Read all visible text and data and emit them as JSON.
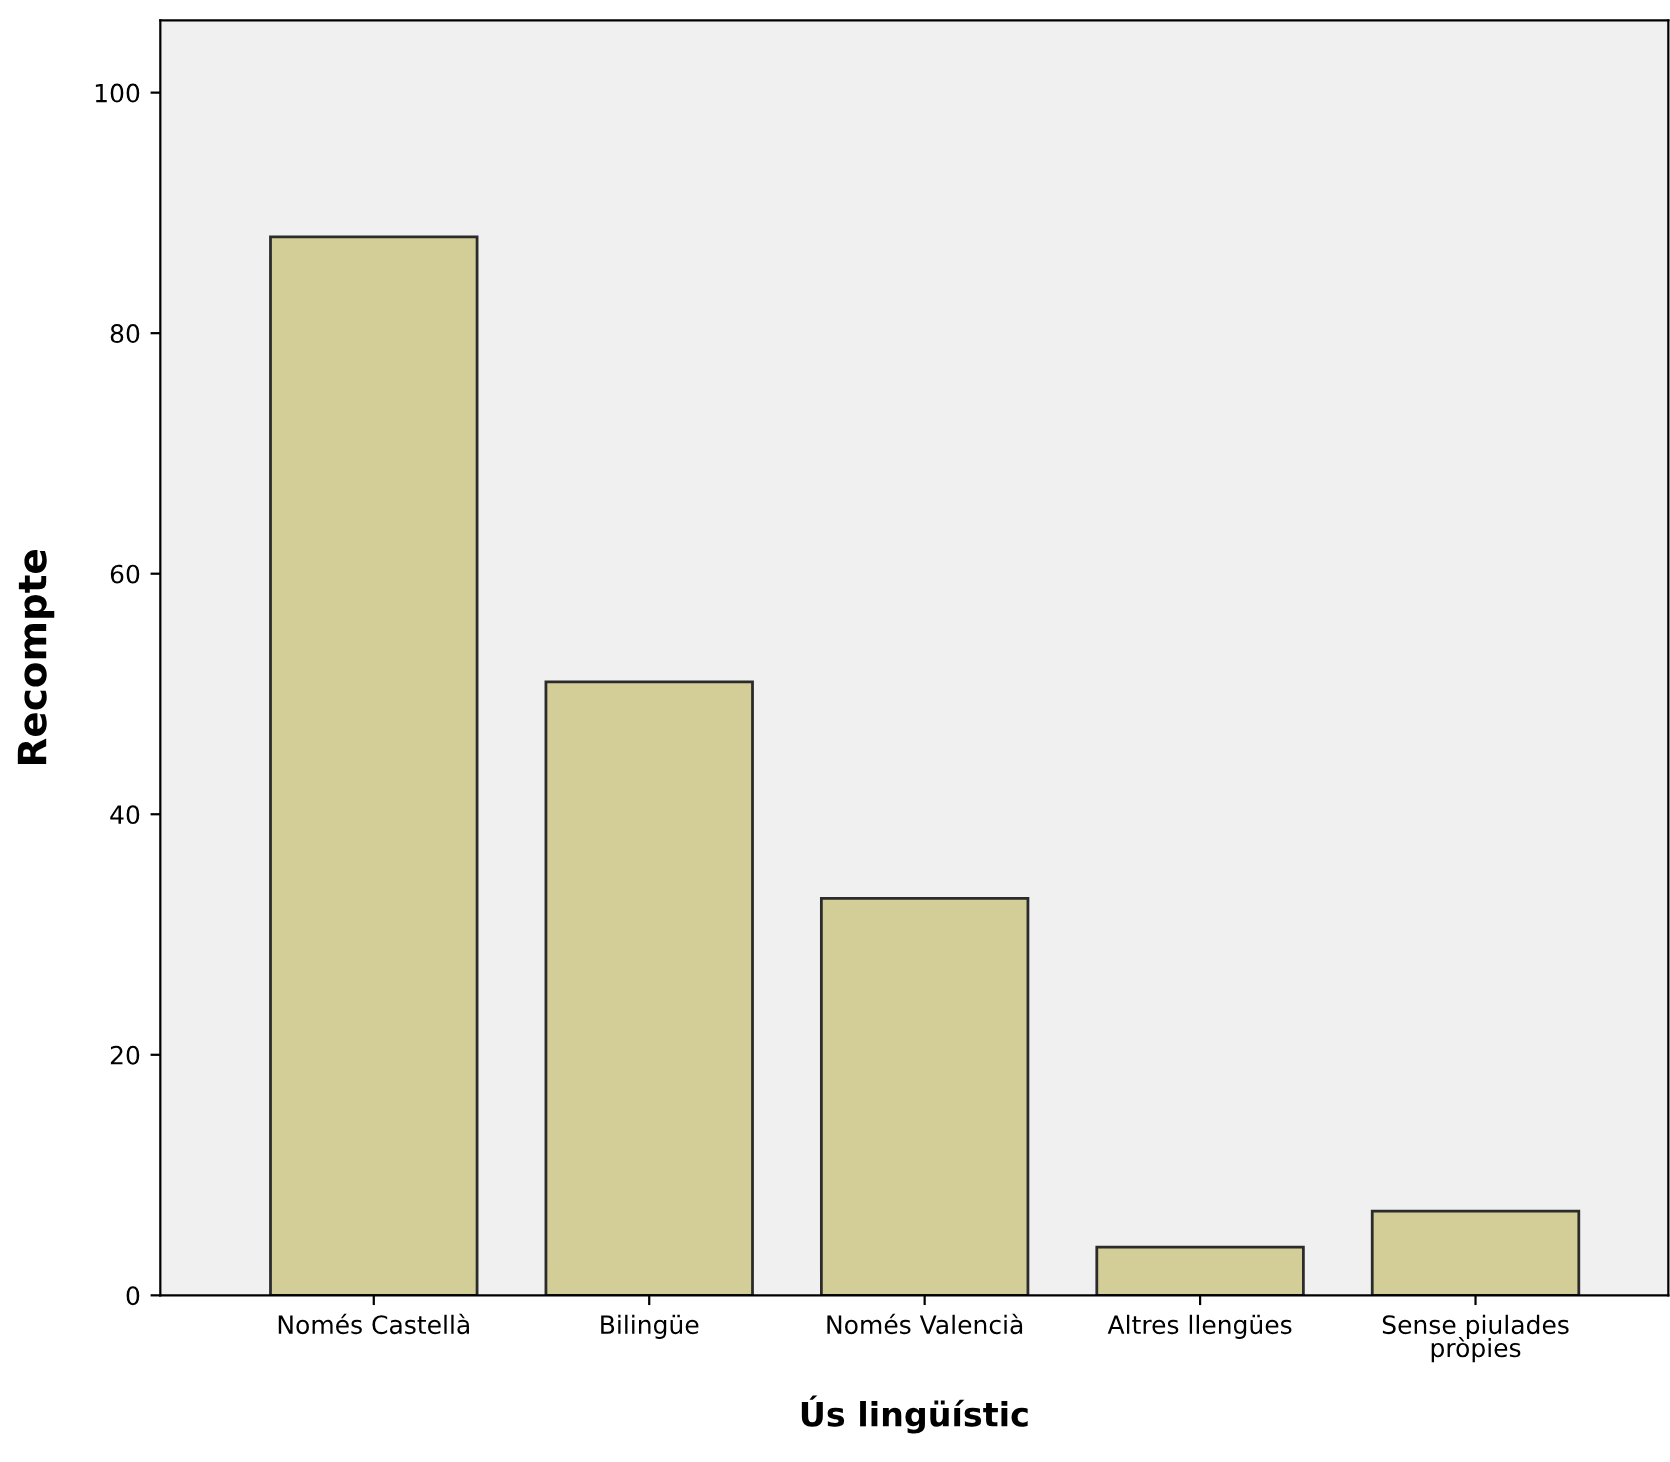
{
  "chart_data": {
    "type": "bar",
    "xlabel": "Ús lingüístic",
    "ylabel": "Recompte",
    "categories": [
      "Només Castellà",
      "Bilingüe",
      "Només Valencià",
      "Altres llengües",
      "Sense piulades\npròpies"
    ],
    "values": [
      88,
      51,
      33,
      4,
      7
    ],
    "color": "#d3ce97",
    "ylim": [
      0,
      106
    ],
    "yticks": [
      0,
      20,
      40,
      60,
      80,
      100
    ],
    "grid": false,
    "legend": false
  }
}
